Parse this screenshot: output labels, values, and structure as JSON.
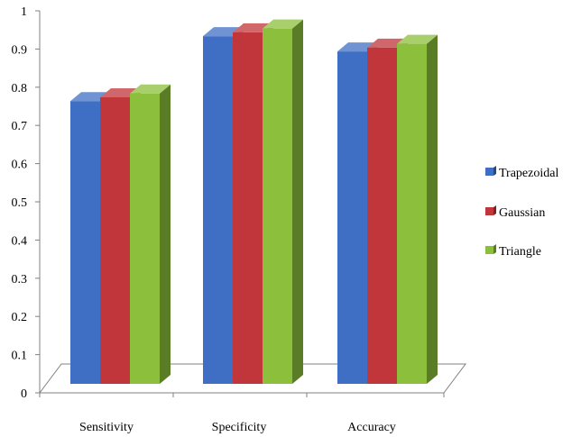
{
  "chart_data": {
    "type": "bar",
    "style": "3d-clustered-column",
    "categories": [
      "Sensitivity",
      "Specificity",
      "Accuracy"
    ],
    "series": [
      {
        "name": "Trapezoidal",
        "values": [
          0.74,
          0.91,
          0.87
        ],
        "color": "#3f6fc4"
      },
      {
        "name": "Gaussian",
        "values": [
          0.75,
          0.92,
          0.88
        ],
        "color": "#c0363a"
      },
      {
        "name": "Triangle",
        "values": [
          0.76,
          0.93,
          0.89
        ],
        "color": "#8cbf3c"
      }
    ],
    "ylim": [
      0,
      1
    ],
    "yticks": [
      "0",
      "0.1",
      "0.2",
      "0.3",
      "0.4",
      "0.5",
      "0.6",
      "0.7",
      "0.8",
      "0.9",
      "1"
    ],
    "grid": false,
    "legend": "right"
  }
}
